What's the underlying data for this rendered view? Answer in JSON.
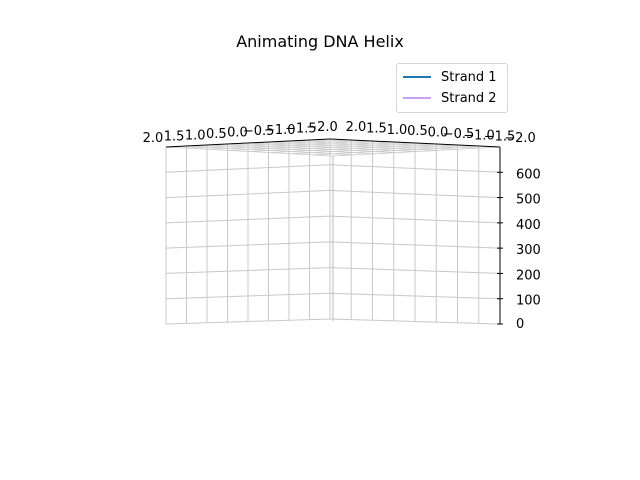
{
  "chart_data": {
    "type": "line",
    "title": "Animating DNA Helix",
    "legend_position": "top-right",
    "grid": true,
    "xlim": [
      -2.0,
      2.0
    ],
    "ylim": [
      -2.0,
      2.0
    ],
    "zlim": [
      0,
      700
    ],
    "x_ticks": [
      "2.0",
      "1.5",
      "1.0",
      "0.5",
      "0.0",
      "−0.5",
      "−1.0",
      "−1.5",
      "−2.0"
    ],
    "y_ticks": [
      "2.0",
      "1.5",
      "1.0",
      "0.5",
      "0.0",
      "−0.5",
      "−1.0",
      "−1.5",
      "−2.0"
    ],
    "z_ticks": [
      "0",
      "100",
      "200",
      "300",
      "400",
      "500",
      "600"
    ],
    "series": [
      {
        "name": "Strand 1",
        "color": "#1f77b4",
        "values": []
      },
      {
        "name": "Strand 2",
        "color": "#c9a0f5",
        "values": []
      }
    ]
  }
}
